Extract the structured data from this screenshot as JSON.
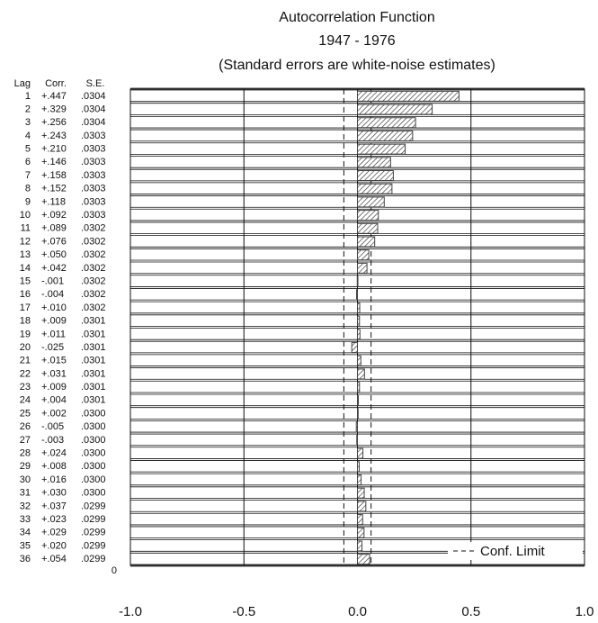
{
  "chart_data": {
    "type": "bar",
    "orientation": "horizontal",
    "title": "Autocorrelation Function",
    "subtitle": "1947 - 1976",
    "note": "(Standard errors are white-noise estimates)",
    "column_headers": [
      "Lag",
      "Corr.",
      "S.E."
    ],
    "bottom_lag_label": "0",
    "categories": [
      1,
      2,
      3,
      4,
      5,
      6,
      7,
      8,
      9,
      10,
      11,
      12,
      13,
      14,
      15,
      16,
      17,
      18,
      19,
      20,
      21,
      22,
      23,
      24,
      25,
      26,
      27,
      28,
      29,
      30,
      31,
      32,
      33,
      34,
      35,
      36
    ],
    "series": [
      {
        "name": "Corr.",
        "color": "#444444",
        "values": [
          0.447,
          0.329,
          0.256,
          0.243,
          0.21,
          0.146,
          0.158,
          0.152,
          0.118,
          0.092,
          0.089,
          0.076,
          0.05,
          0.042,
          -0.001,
          -0.004,
          0.01,
          0.009,
          0.011,
          -0.025,
          0.015,
          0.031,
          0.009,
          0.004,
          0.002,
          -0.005,
          -0.003,
          0.024,
          0.008,
          0.016,
          0.03,
          0.037,
          0.023,
          0.029,
          0.02,
          0.054
        ],
        "value_labels": [
          "+.447",
          "+.329",
          "+.256",
          "+.243",
          "+.210",
          "+.146",
          "+.158",
          "+.152",
          "+.118",
          "+.092",
          "+.089",
          "+.076",
          "+.050",
          "+.042",
          "-.001",
          "-.004",
          "+.010",
          "+.009",
          "+.011",
          "-.025",
          "+.015",
          "+.031",
          "+.009",
          "+.004",
          "+.002",
          "-.005",
          "-.003",
          "+.024",
          "+.008",
          "+.016",
          "+.030",
          "+.037",
          "+.023",
          "+.029",
          "+.020",
          "+.054"
        ]
      },
      {
        "name": "S.E.",
        "values": [
          0.0304,
          0.0304,
          0.0304,
          0.0303,
          0.0303,
          0.0303,
          0.0303,
          0.0303,
          0.0303,
          0.0303,
          0.0302,
          0.0302,
          0.0302,
          0.0302,
          0.0302,
          0.0302,
          0.0302,
          0.0301,
          0.0301,
          0.0301,
          0.0301,
          0.0301,
          0.0301,
          0.0301,
          0.03,
          0.03,
          0.03,
          0.03,
          0.03,
          0.03,
          0.03,
          0.0299,
          0.0299,
          0.0299,
          0.0299,
          0.0299
        ],
        "value_labels": [
          ".0304",
          ".0304",
          ".0304",
          ".0303",
          ".0303",
          ".0303",
          ".0303",
          ".0303",
          ".0303",
          ".0303",
          ".0302",
          ".0302",
          ".0302",
          ".0302",
          ".0302",
          ".0302",
          ".0302",
          ".0301",
          ".0301",
          ".0301",
          ".0301",
          ".0301",
          ".0301",
          ".0301",
          ".0300",
          ".0300",
          ".0300",
          ".0300",
          ".0300",
          ".0300",
          ".0300",
          ".0299",
          ".0299",
          ".0299",
          ".0299",
          ".0299"
        ]
      }
    ],
    "conf_limit": {
      "name": "Conf. Limit",
      "values": [
        -0.06,
        0.06
      ]
    },
    "xlim": [
      -1,
      1
    ],
    "xticks": [
      {
        "value": -1,
        "label": "-1.0"
      },
      -0.5,
      {
        "value": 0,
        "label": "0.0"
      },
      0.5,
      {
        "value": 1,
        "label": "1.0"
      }
    ],
    "grid": true,
    "legend": "lower right"
  }
}
